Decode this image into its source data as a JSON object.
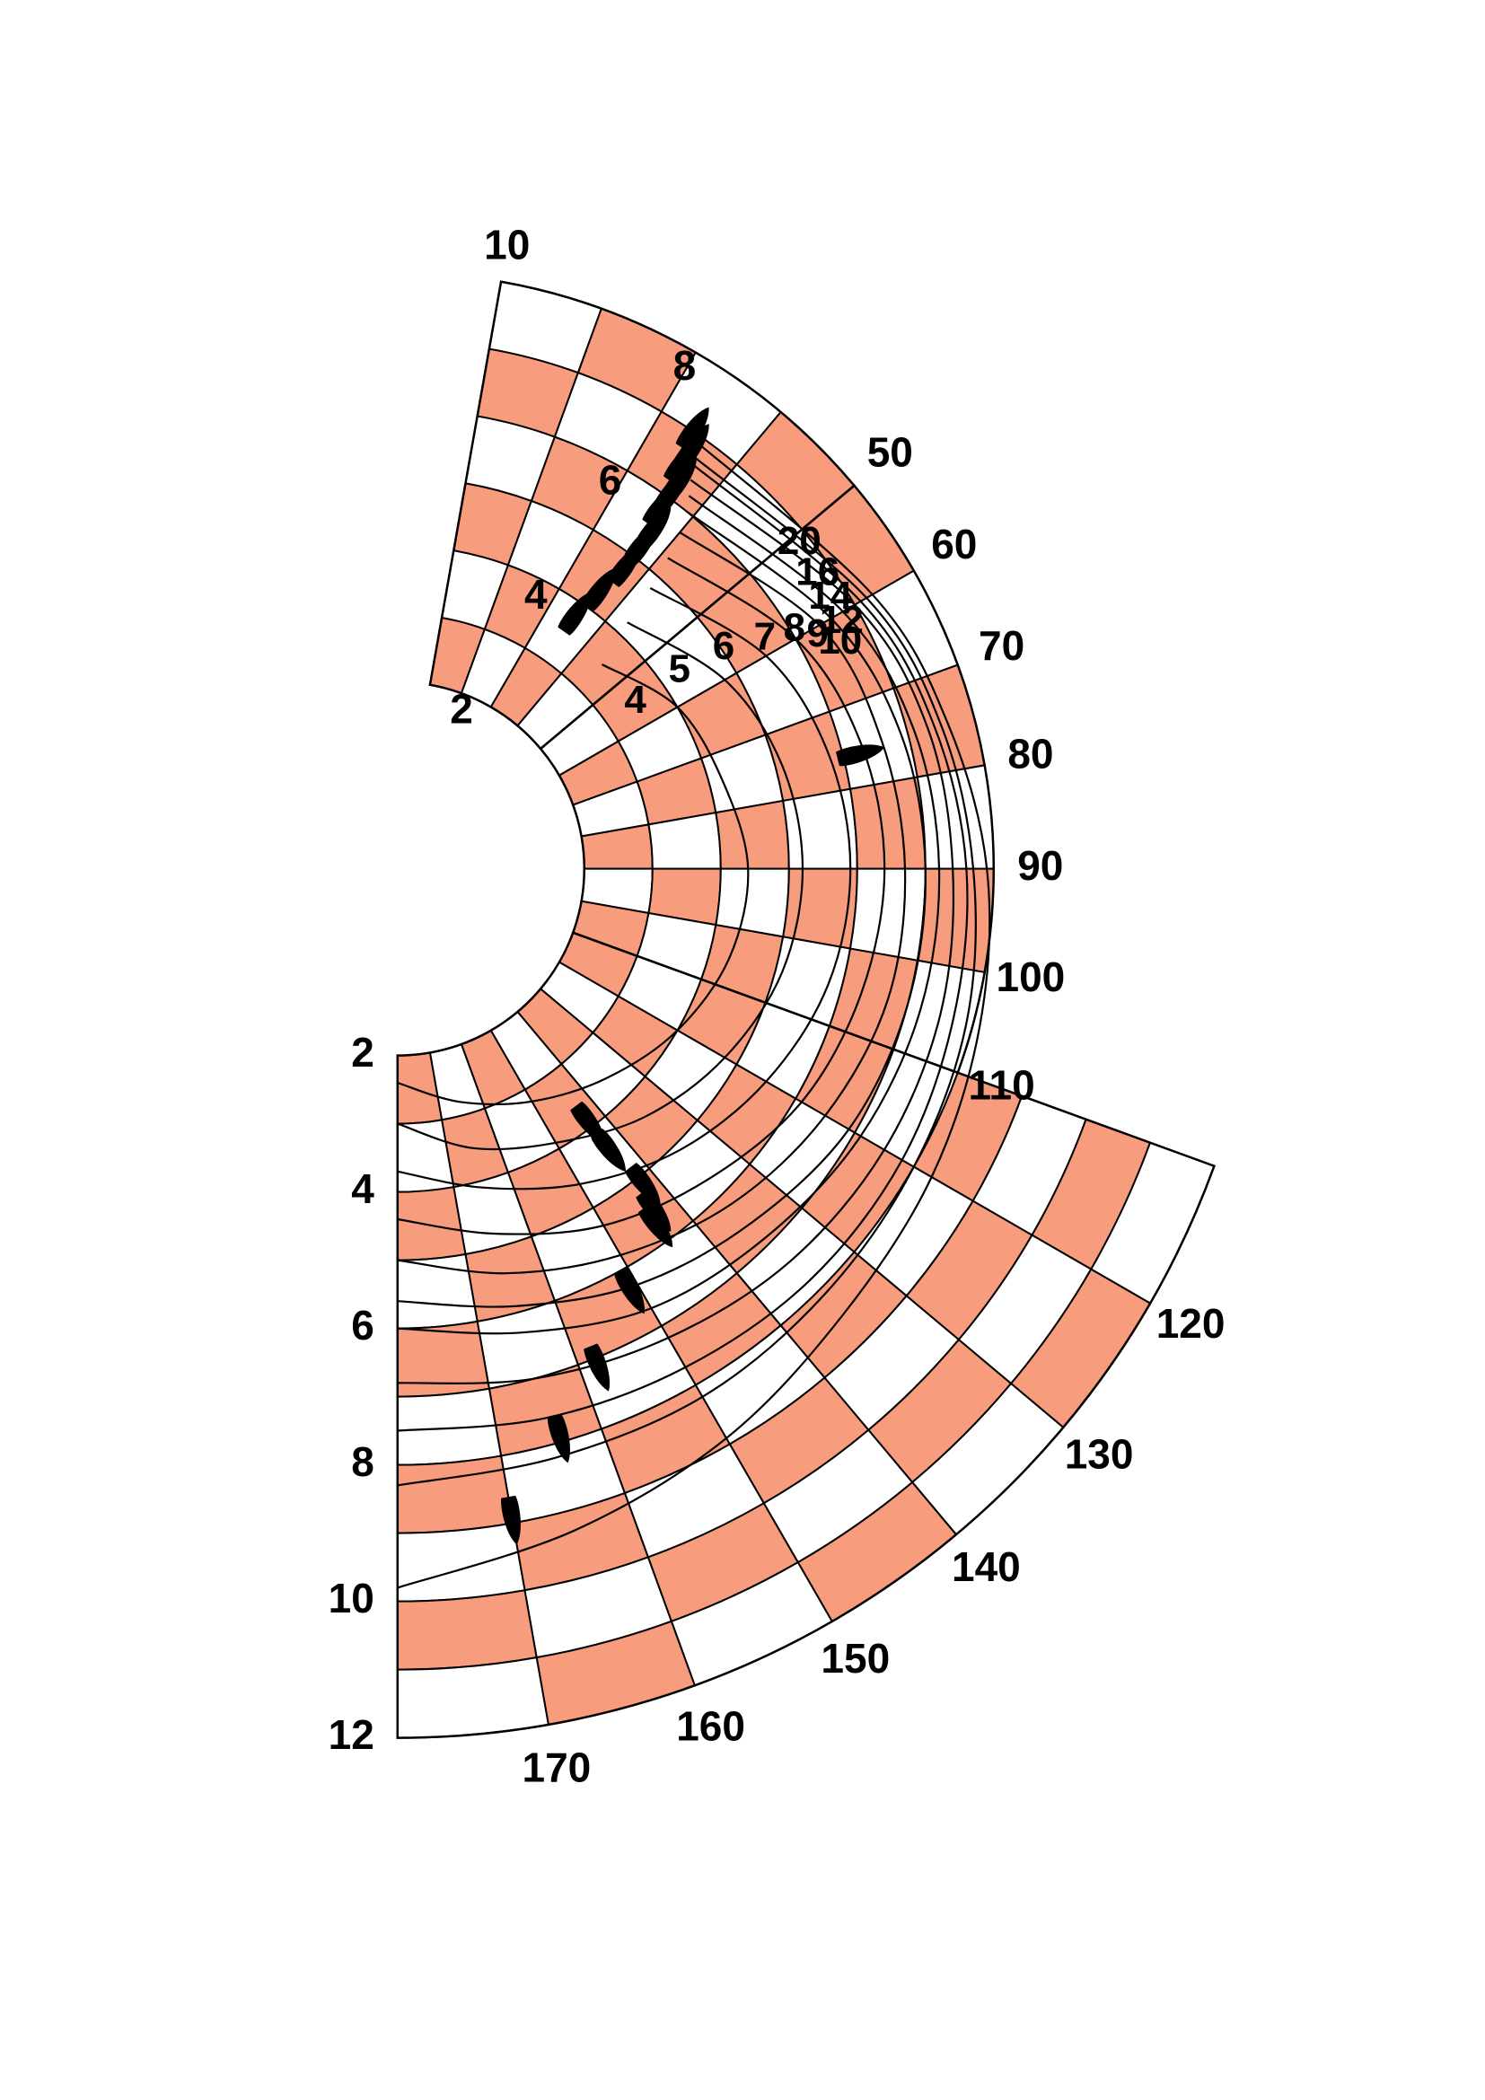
{
  "chart_data": {
    "type": "polar",
    "title": "",
    "colors": {
      "band_fill": "#F79C7D",
      "band_alt": "#FFFFFF",
      "line": "#000000",
      "boat": "#000000"
    },
    "angle_unit": "deg",
    "upwind_sector": [
      10,
      50
    ],
    "downwind_sector": [
      110,
      180
    ],
    "speed_range": [
      2,
      12
    ],
    "angle_ticks": [
      "10",
      "50",
      "60",
      "70",
      "80",
      "90",
      "100",
      "110",
      "120",
      "130",
      "140",
      "150",
      "160",
      "170"
    ],
    "upwind_speed_ticks": [
      "2",
      "4",
      "6",
      "8"
    ],
    "downwind_speed_ticks": [
      "2",
      "4",
      "6",
      "8",
      "10",
      "12"
    ],
    "wind_speed_labels": [
      "4",
      "5",
      "6",
      "7",
      "8",
      "9",
      "10",
      "12",
      "14",
      "16",
      "20"
    ],
    "series": [
      {
        "name": "4",
        "points": [
          [
            45,
            3.5
          ],
          [
            60,
            4.0
          ],
          [
            75,
            4.2
          ],
          [
            90,
            4.4
          ],
          [
            105,
            4.3
          ],
          [
            120,
            4.0
          ],
          [
            135,
            3.6
          ],
          [
            150,
            3.2
          ],
          [
            165,
            2.8
          ],
          [
            180,
            2.4
          ]
        ]
      },
      {
        "name": "5",
        "points": [
          [
            43,
            4.2
          ],
          [
            60,
            4.8
          ],
          [
            75,
            5.1
          ],
          [
            90,
            5.2
          ],
          [
            105,
            5.1
          ],
          [
            120,
            4.8
          ],
          [
            135,
            4.4
          ],
          [
            150,
            3.9
          ],
          [
            165,
            3.5
          ],
          [
            180,
            3.0
          ]
        ]
      },
      {
        "name": "6",
        "points": [
          [
            42,
            4.8
          ],
          [
            60,
            5.5
          ],
          [
            75,
            5.8
          ],
          [
            90,
            5.9
          ],
          [
            105,
            5.8
          ],
          [
            120,
            5.5
          ],
          [
            135,
            5.1
          ],
          [
            150,
            4.6
          ],
          [
            165,
            4.1
          ],
          [
            180,
            3.7
          ]
        ]
      },
      {
        "name": "7",
        "points": [
          [
            41,
            5.3
          ],
          [
            60,
            6.0
          ],
          [
            75,
            6.3
          ],
          [
            90,
            6.4
          ],
          [
            105,
            6.3
          ],
          [
            120,
            6.1
          ],
          [
            135,
            5.7
          ],
          [
            150,
            5.3
          ],
          [
            165,
            4.8
          ],
          [
            180,
            4.4
          ]
        ]
      },
      {
        "name": "8",
        "points": [
          [
            40,
            5.7
          ],
          [
            60,
            6.4
          ],
          [
            75,
            6.6
          ],
          [
            90,
            6.7
          ],
          [
            105,
            6.7
          ],
          [
            120,
            6.5
          ],
          [
            135,
            6.2
          ],
          [
            150,
            5.8
          ],
          [
            165,
            5.4
          ],
          [
            180,
            5.0
          ]
        ]
      },
      {
        "name": "9",
        "points": [
          [
            39,
            6.0
          ],
          [
            60,
            6.6
          ],
          [
            75,
            6.9
          ],
          [
            90,
            7.0
          ],
          [
            105,
            7.0
          ],
          [
            120,
            6.9
          ],
          [
            135,
            6.6
          ],
          [
            150,
            6.3
          ],
          [
            165,
            5.9
          ],
          [
            180,
            5.6
          ]
        ]
      },
      {
        "name": "10",
        "points": [
          [
            38,
            6.2
          ],
          [
            60,
            6.8
          ],
          [
            75,
            7.1
          ],
          [
            90,
            7.2
          ],
          [
            105,
            7.2
          ],
          [
            120,
            7.1
          ],
          [
            135,
            6.9
          ],
          [
            150,
            6.7
          ],
          [
            165,
            6.3
          ],
          [
            180,
            6.0
          ]
        ]
      },
      {
        "name": "12",
        "points": [
          [
            37,
            6.4
          ],
          [
            60,
            7.0
          ],
          [
            75,
            7.3
          ],
          [
            90,
            7.4
          ],
          [
            105,
            7.5
          ],
          [
            120,
            7.5
          ],
          [
            135,
            7.4
          ],
          [
            150,
            7.2
          ],
          [
            165,
            7.0
          ],
          [
            180,
            6.8
          ]
        ]
      },
      {
        "name": "14",
        "points": [
          [
            36,
            6.6
          ],
          [
            60,
            7.1
          ],
          [
            75,
            7.4
          ],
          [
            90,
            7.6
          ],
          [
            105,
            7.7
          ],
          [
            120,
            7.8
          ],
          [
            135,
            7.8
          ],
          [
            150,
            7.7
          ],
          [
            165,
            7.6
          ],
          [
            180,
            7.5
          ]
        ]
      },
      {
        "name": "16",
        "points": [
          [
            36,
            6.7
          ],
          [
            60,
            7.2
          ],
          [
            75,
            7.5
          ],
          [
            90,
            7.7
          ],
          [
            105,
            7.9
          ],
          [
            120,
            8.0
          ],
          [
            135,
            8.1
          ],
          [
            150,
            8.2
          ],
          [
            165,
            8.2
          ],
          [
            180,
            8.3
          ]
        ]
      },
      {
        "name": "20",
        "points": [
          [
            35,
            6.9
          ],
          [
            60,
            7.3
          ],
          [
            75,
            7.6
          ],
          [
            90,
            7.9
          ],
          [
            105,
            8.1
          ],
          [
            120,
            8.3
          ],
          [
            135,
            8.5
          ],
          [
            150,
            8.9
          ],
          [
            165,
            9.3
          ],
          [
            180,
            9.8
          ]
        ]
      }
    ],
    "boats": [
      [
        35,
        3.8
      ],
      [
        36,
        4.3
      ],
      [
        37,
        4.8
      ],
      [
        37,
        5.2
      ],
      [
        37,
        5.5
      ],
      [
        36,
        5.8
      ],
      [
        36,
        6.1
      ],
      [
        36,
        6.3
      ],
      [
        35,
        6.5
      ],
      [
        35,
        6.7
      ],
      [
        35,
        6.8
      ],
      [
        34,
        7.0
      ],
      [
        76,
        6.2
      ],
      [
        143,
        3.9
      ],
      [
        143,
        4.4
      ],
      [
        142,
        5.1
      ],
      [
        143,
        5.5
      ],
      [
        144,
        5.7
      ],
      [
        151,
        6.3
      ],
      [
        158,
        7.1
      ],
      [
        164,
        7.9
      ],
      [
        170,
        8.9
      ]
    ]
  }
}
